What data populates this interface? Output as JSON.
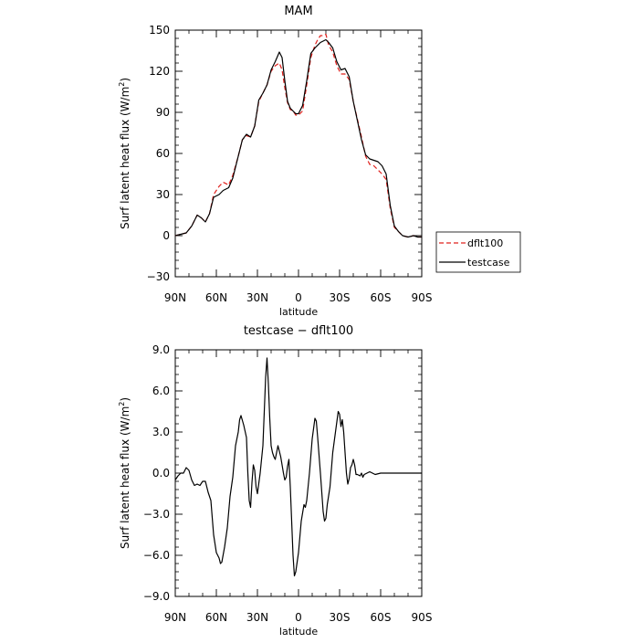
{
  "chart_data": [
    {
      "type": "line",
      "title": "MAM",
      "xlabel": "latitude",
      "ylabel_parts": [
        "Surf latent heat flux (W/m",
        "2",
        ")"
      ],
      "xlim": [
        90,
        -90
      ],
      "ylim": [
        -30,
        150
      ],
      "x_ticks": [
        90,
        60,
        30,
        0,
        -30,
        -60,
        -90
      ],
      "x_tick_labels": [
        "90N",
        "60N",
        "30N",
        "0",
        "30S",
        "60S",
        "90S"
      ],
      "y_ticks": [
        -30,
        0,
        30,
        60,
        90,
        120,
        150
      ],
      "y_tick_labels": [
        "−30",
        "0",
        "30",
        "60",
        "90",
        "120",
        "150"
      ],
      "legend": {
        "placement": "right",
        "entries": [
          "dflt100",
          "testcase"
        ]
      },
      "series": [
        {
          "name": "dflt100",
          "color": "#e0201c",
          "dash": "dashed",
          "points": [
            [
              90,
              0
            ],
            [
              86,
              1
            ],
            [
              82,
              2
            ],
            [
              78,
              7
            ],
            [
              74,
              15
            ],
            [
              71,
              13
            ],
            [
              68,
              10
            ],
            [
              65,
              16
            ],
            [
              62,
              30
            ],
            [
              58,
              36
            ],
            [
              55,
              39
            ],
            [
              51,
              37
            ],
            [
              48,
              44
            ],
            [
              44,
              58
            ],
            [
              41,
              70
            ],
            [
              38,
              73
            ],
            [
              35,
              72
            ],
            [
              32,
              80
            ],
            [
              29,
              98
            ],
            [
              26,
              104
            ],
            [
              23,
              110
            ],
            [
              20,
              120
            ],
            [
              17,
              124
            ],
            [
              14,
              126
            ],
            [
              12,
              121
            ],
            [
              10,
              108
            ],
            [
              8,
              97
            ],
            [
              6,
              92
            ],
            [
              4,
              91
            ],
            [
              2,
              88
            ],
            [
              0,
              88
            ],
            [
              -3,
              91
            ],
            [
              -6,
              110
            ],
            [
              -9,
              130
            ],
            [
              -12,
              139
            ],
            [
              -14,
              143
            ],
            [
              -16,
              146
            ],
            [
              -18,
              146
            ],
            [
              -20,
              147
            ],
            [
              -22,
              139
            ],
            [
              -25,
              134
            ],
            [
              -28,
              124
            ],
            [
              -31,
              118
            ],
            [
              -34,
              118
            ],
            [
              -37,
              114
            ],
            [
              -40,
              98
            ],
            [
              -43,
              85
            ],
            [
              -46,
              72
            ],
            [
              -49,
              58
            ],
            [
              -52,
              52
            ],
            [
              -55,
              51
            ],
            [
              -58,
              48
            ],
            [
              -61,
              45
            ],
            [
              -64,
              41
            ],
            [
              -67,
              20
            ],
            [
              -70,
              6
            ],
            [
              -73,
              3
            ],
            [
              -76,
              0
            ],
            [
              -80,
              -1
            ],
            [
              -84,
              0
            ],
            [
              -87,
              -1
            ],
            [
              -90,
              -1
            ]
          ]
        },
        {
          "name": "testcase",
          "color": "#000000",
          "dash": "solid",
          "points": [
            [
              90,
              0
            ],
            [
              86,
              1
            ],
            [
              82,
              2
            ],
            [
              78,
              7
            ],
            [
              74,
              15
            ],
            [
              71,
              13
            ],
            [
              68,
              10
            ],
            [
              65,
              16
            ],
            [
              62,
              28
            ],
            [
              58,
              30
            ],
            [
              55,
              33
            ],
            [
              51,
              35
            ],
            [
              48,
              42
            ],
            [
              44,
              58
            ],
            [
              41,
              70
            ],
            [
              38,
              74
            ],
            [
              35,
              72
            ],
            [
              32,
              80
            ],
            [
              29,
              99
            ],
            [
              26,
              104
            ],
            [
              23,
              110
            ],
            [
              20,
              121
            ],
            [
              17,
              127
            ],
            [
              14,
              134
            ],
            [
              12,
              130
            ],
            [
              10,
              113
            ],
            [
              8,
              98
            ],
            [
              6,
              93
            ],
            [
              4,
              91
            ],
            [
              2,
              89
            ],
            [
              0,
              89
            ],
            [
              -3,
              95
            ],
            [
              -6,
              113
            ],
            [
              -9,
              133
            ],
            [
              -12,
              137
            ],
            [
              -14,
              139
            ],
            [
              -16,
              141
            ],
            [
              -18,
              142
            ],
            [
              -20,
              143
            ],
            [
              -22,
              141
            ],
            [
              -25,
              137
            ],
            [
              -28,
              127
            ],
            [
              -31,
              121
            ],
            [
              -34,
              122
            ],
            [
              -37,
              116
            ],
            [
              -40,
              98
            ],
            [
              -43,
              84
            ],
            [
              -46,
              70
            ],
            [
              -49,
              59
            ],
            [
              -52,
              56
            ],
            [
              -55,
              55
            ],
            [
              -58,
              54
            ],
            [
              -61,
              51
            ],
            [
              -64,
              45
            ],
            [
              -67,
              22
            ],
            [
              -70,
              7
            ],
            [
              -73,
              3
            ],
            [
              -76,
              0
            ],
            [
              -80,
              -1
            ],
            [
              -84,
              0
            ],
            [
              -87,
              -1
            ],
            [
              -90,
              -1
            ]
          ]
        }
      ]
    },
    {
      "type": "line",
      "title": "testcase − dflt100",
      "xlabel": "latitude",
      "ylabel_parts": [
        "Surf latent heat flux (W/m",
        "2",
        ")"
      ],
      "xlim": [
        90,
        -90
      ],
      "ylim": [
        -9,
        9
      ],
      "x_ticks": [
        90,
        60,
        30,
        0,
        -30,
        -60,
        -90
      ],
      "x_tick_labels": [
        "90N",
        "60N",
        "30N",
        "0",
        "30S",
        "60S",
        "90S"
      ],
      "y_ticks": [
        -9,
        -6,
        -3,
        0,
        3,
        6,
        9
      ],
      "y_tick_labels": [
        "−9.0",
        "−6.0",
        "−3.0",
        "0.0",
        "3.0",
        "6.0",
        "9.0"
      ],
      "series": [
        {
          "color": "#000000",
          "dash": "solid",
          "points": [
            [
              90,
              -0.5
            ],
            [
              88,
              -0.2
            ],
            [
              86,
              0
            ],
            [
              84,
              0
            ],
            [
              82,
              0.4
            ],
            [
              80,
              0.2
            ],
            [
              78,
              -0.5
            ],
            [
              76,
              -0.9
            ],
            [
              74,
              -0.8
            ],
            [
              72,
              -0.9
            ],
            [
              70,
              -0.6
            ],
            [
              68,
              -0.6
            ],
            [
              66,
              -1.4
            ],
            [
              64,
              -2
            ],
            [
              62,
              -4.5
            ],
            [
              60,
              -5.8
            ],
            [
              58,
              -6.2
            ],
            [
              57,
              -6.6
            ],
            [
              56,
              -6.5
            ],
            [
              54,
              -5.4
            ],
            [
              52,
              -4
            ],
            [
              50,
              -1.7
            ],
            [
              48,
              -0.3
            ],
            [
              46,
              2
            ],
            [
              44,
              3
            ],
            [
              43,
              3.9
            ],
            [
              42,
              4.2
            ],
            [
              40,
              3.5
            ],
            [
              38,
              2.6
            ],
            [
              37,
              0
            ],
            [
              36,
              -2
            ],
            [
              35,
              -2.5
            ],
            [
              34,
              -0.7
            ],
            [
              33,
              0.6
            ],
            [
              32,
              0.2
            ],
            [
              31,
              -1
            ],
            [
              30,
              -1.5
            ],
            [
              28,
              0
            ],
            [
              26,
              2
            ],
            [
              25,
              4.5
            ],
            [
              24,
              7
            ],
            [
              23,
              8.4
            ],
            [
              22,
              6.5
            ],
            [
              21,
              4
            ],
            [
              20,
              2
            ],
            [
              19,
              1.5
            ],
            [
              18,
              1.2
            ],
            [
              17,
              1
            ],
            [
              16,
              1.5
            ],
            [
              15,
              2
            ],
            [
              13,
              1.2
            ],
            [
              11,
              0
            ],
            [
              10,
              -0.5
            ],
            [
              9,
              -0.3
            ],
            [
              8,
              0.5
            ],
            [
              7,
              1
            ],
            [
              6,
              -1
            ],
            [
              5,
              -3.5
            ],
            [
              4,
              -6
            ],
            [
              3,
              -7.5
            ],
            [
              2,
              -7.2
            ],
            [
              0,
              -5.8
            ],
            [
              -2,
              -3.5
            ],
            [
              -4,
              -2.3
            ],
            [
              -5,
              -2.5
            ],
            [
              -6,
              -2
            ],
            [
              -8,
              0
            ],
            [
              -10,
              2.5
            ],
            [
              -12,
              4
            ],
            [
              -13,
              3.8
            ],
            [
              -14,
              2.6
            ],
            [
              -16,
              0
            ],
            [
              -18,
              -2.8
            ],
            [
              -19,
              -3.5
            ],
            [
              -20,
              -3.3
            ],
            [
              -21,
              -2.3
            ],
            [
              -23,
              -1
            ],
            [
              -25,
              1.5
            ],
            [
              -27,
              3
            ],
            [
              -29,
              4.5
            ],
            [
              -30,
              4.3
            ],
            [
              -31,
              3.4
            ],
            [
              -32,
              3.9
            ],
            [
              -33,
              3
            ],
            [
              -35,
              0
            ],
            [
              -36,
              -0.8
            ],
            [
              -37,
              -0.4
            ],
            [
              -38,
              0.4
            ],
            [
              -39,
              0.6
            ],
            [
              -40,
              1
            ],
            [
              -41,
              0.6
            ],
            [
              -42,
              -0.1
            ],
            [
              -43,
              -0.1
            ],
            [
              -45,
              -0.2
            ],
            [
              -46,
              0
            ],
            [
              -47,
              -0.3
            ],
            [
              -48,
              -0.1
            ],
            [
              -50,
              0
            ],
            [
              -52,
              0.1
            ],
            [
              -54,
              0
            ],
            [
              -56,
              -0.1
            ],
            [
              -60,
              0
            ],
            [
              -64,
              0
            ],
            [
              -68,
              0
            ],
            [
              -72,
              0
            ],
            [
              -76,
              0
            ],
            [
              -80,
              0
            ],
            [
              -84,
              0
            ],
            [
              -88,
              0
            ],
            [
              -90,
              0
            ]
          ]
        }
      ]
    }
  ]
}
